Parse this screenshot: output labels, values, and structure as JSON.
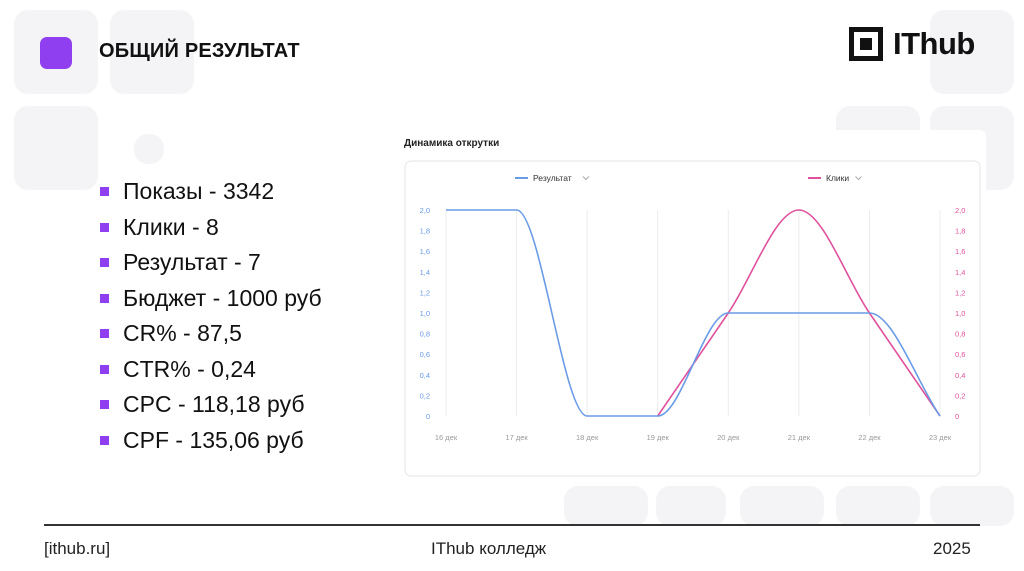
{
  "header": {
    "title": "ОБЩИЙ РЕЗУЛЬТАТ",
    "logo_text": "IThub",
    "accent_color": "#8f3ef0"
  },
  "stats": [
    "Показы - 3342",
    "Клики - 8",
    "Результат - 7",
    "Бюджет - 1000 руб",
    "CR% - 87,5",
    "CTR% - 0,24",
    "CPC - 118,18 руб",
    "CPF - 135,06 руб"
  ],
  "footer": {
    "left": "[ithub.ru]",
    "center": "IThub колледж",
    "right": "2025"
  },
  "chart_data": {
    "type": "line",
    "title": "Динамика открутки",
    "categories": [
      "16 дек",
      "17 дек",
      "18 дек",
      "19 дек",
      "20 дек",
      "21 дек",
      "22 дек",
      "23 дек"
    ],
    "y_ticks": [
      "2,0",
      "1,8",
      "1,6",
      "1,4",
      "1,2",
      "1,0",
      "0,8",
      "0,6",
      "0,4",
      "0,2",
      "0"
    ],
    "ylim": [
      0,
      2
    ],
    "series": [
      {
        "name": "Результат",
        "color": "#6a9be6",
        "axis": "left",
        "values": [
          2,
          2,
          0,
          0,
          1,
          1,
          1,
          0
        ]
      },
      {
        "name": "Клики",
        "color": "#e0519d",
        "axis": "right",
        "values": [
          null,
          null,
          null,
          0,
          1,
          2,
          1,
          0
        ]
      }
    ],
    "grid": "vertical",
    "legend_position": "top"
  }
}
